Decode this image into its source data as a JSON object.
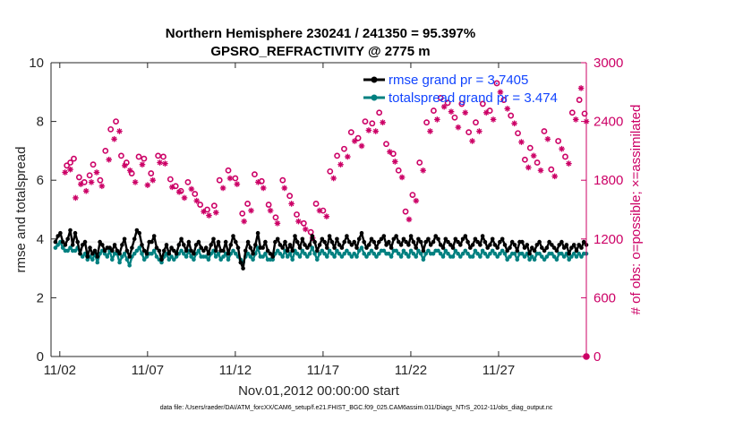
{
  "chart_data": {
    "type": "line",
    "title": "Northern Hemisphere 230241 / 241350 = 95.397%",
    "subtitle": "GPSRO_REFRACTIVITY @ 2775 m",
    "xlabel": "Nov.01,2012 00:00:00 start",
    "ylabel_left": "rmse and totalspread",
    "ylabel_right": "# of obs: o=possible; ×=assimilated",
    "footer": "data file: /Users/raeder/DAI/ATM_forcXX/CAM6_setup/f.e21.FHIST_BGC.f09_025.CAM6assim.011/Diags_NTrS_2012-11/obs_diag_output.nc",
    "x_range_days": [
      0.5,
      31.0
    ],
    "ylim_left": [
      0,
      10
    ],
    "ylim_right": [
      0,
      3000
    ],
    "x_tick_labels": [
      "11/02",
      "11/07",
      "11/12",
      "11/17",
      "11/22",
      "11/27"
    ],
    "x_tick_days": [
      1,
      6,
      11,
      16,
      21,
      26
    ],
    "y_left_ticks": [
      "0",
      "2",
      "4",
      "6",
      "8",
      "10"
    ],
    "y_right_ticks": [
      "0",
      "600",
      "1200",
      "1800",
      "2400",
      "3000"
    ],
    "colors": {
      "rmse": "#000000",
      "spread": "#008080",
      "obs": "#cc0066",
      "legend_text": "#1144ff"
    },
    "series": [
      {
        "name": "rmse grand pr = 3.7405",
        "values": [
          3.9,
          4.1,
          4.2,
          3.9,
          3.8,
          4.0,
          4.3,
          3.8,
          4.2,
          3.9,
          3.5,
          3.8,
          3.9,
          3.4,
          3.7,
          3.5,
          3.6,
          3.4,
          3.9,
          3.8,
          3.6,
          3.7,
          3.7,
          3.6,
          3.8,
          3.6,
          3.5,
          3.8,
          4.0,
          3.6,
          3.4,
          3.7,
          4.0,
          4.3,
          4.2,
          3.8,
          3.6,
          3.5,
          3.9,
          3.9,
          4.1,
          3.7,
          3.6,
          3.3,
          3.6,
          3.8,
          3.5,
          3.7,
          3.6,
          3.5,
          3.8,
          4.0,
          3.8,
          3.6,
          3.9,
          3.6,
          3.5,
          3.8,
          3.9,
          3.7,
          3.6,
          3.7,
          3.5,
          3.8,
          4.0,
          3.6,
          3.9,
          3.6,
          3.6,
          3.9,
          3.5,
          3.8,
          4.1,
          3.9,
          3.7,
          3.2,
          3.0,
          3.6,
          3.9,
          3.7,
          3.5,
          3.8,
          4.2,
          3.7,
          3.7,
          3.9,
          3.6,
          3.5,
          3.4,
          3.9,
          4.0,
          3.8,
          3.7,
          3.9,
          3.6,
          3.8,
          3.6,
          4.1,
          3.9,
          3.7,
          4.0,
          3.8,
          3.7,
          3.8,
          4.1,
          3.9,
          3.6,
          3.8,
          4.0,
          3.9,
          3.7,
          4.1,
          3.9,
          3.7,
          4.0,
          3.8,
          3.7,
          3.9,
          4.1,
          3.9,
          3.8,
          3.9,
          3.7,
          4.0,
          4.2,
          3.9,
          3.7,
          3.8,
          4.0,
          3.9,
          3.7,
          3.9,
          4.0,
          4.1,
          3.8,
          3.9,
          3.7,
          4.0,
          4.1,
          3.9,
          3.8,
          4.0,
          3.9,
          3.8,
          4.1,
          3.9,
          3.7,
          4.0,
          3.9,
          3.6,
          3.9,
          4.0,
          3.8,
          3.9,
          4.1,
          4.0,
          3.8,
          3.7,
          4.0,
          3.9,
          3.8,
          3.7,
          4.0,
          3.9,
          3.8,
          4.0,
          4.1,
          3.9,
          3.7,
          3.8,
          4.0,
          3.9,
          3.8,
          4.1,
          3.9,
          3.7,
          3.8,
          4.0,
          3.8,
          3.7,
          3.9,
          4.0,
          3.8,
          3.6,
          3.7,
          3.9,
          3.8,
          3.6,
          3.9,
          3.9,
          3.7,
          3.8,
          3.5,
          3.7,
          3.6,
          3.8,
          3.9,
          3.7,
          3.6,
          3.7,
          3.9,
          3.8,
          3.7,
          3.6,
          3.8,
          3.9,
          3.7,
          3.8,
          3.5,
          3.7,
          3.8,
          3.6,
          3.8,
          3.7,
          3.9,
          3.8
        ]
      },
      {
        "name": "totalspread grand pr = 3.474",
        "values": [
          3.7,
          3.8,
          3.9,
          3.7,
          3.6,
          3.6,
          3.7,
          3.6,
          3.6,
          3.7,
          3.5,
          3.4,
          3.5,
          3.3,
          3.4,
          3.3,
          3.5,
          3.2,
          3.5,
          3.6,
          3.5,
          3.4,
          3.6,
          3.3,
          3.5,
          3.5,
          3.2,
          3.4,
          3.5,
          3.3,
          3.1,
          3.4,
          3.5,
          3.6,
          3.7,
          3.5,
          3.3,
          3.4,
          3.5,
          3.5,
          3.6,
          3.4,
          3.3,
          3.2,
          3.4,
          3.5,
          3.3,
          3.4,
          3.3,
          3.4,
          3.5,
          3.6,
          3.5,
          3.4,
          3.6,
          3.4,
          3.3,
          3.5,
          3.6,
          3.4,
          3.4,
          3.4,
          3.3,
          3.5,
          3.6,
          3.4,
          3.5,
          3.3,
          3.4,
          3.5,
          3.3,
          3.5,
          3.6,
          3.5,
          3.4,
          3.3,
          3.2,
          3.4,
          3.5,
          3.4,
          3.3,
          3.5,
          3.7,
          3.4,
          3.4,
          3.5,
          3.3,
          3.3,
          3.3,
          3.5,
          3.6,
          3.5,
          3.4,
          3.6,
          3.4,
          3.5,
          3.3,
          3.6,
          3.5,
          3.4,
          3.6,
          3.5,
          3.4,
          3.5,
          3.7,
          3.5,
          3.3,
          3.5,
          3.6,
          3.5,
          3.4,
          3.6,
          3.5,
          3.4,
          3.6,
          3.5,
          3.4,
          3.5,
          3.6,
          3.5,
          3.4,
          3.5,
          3.4,
          3.6,
          3.7,
          3.5,
          3.4,
          3.5,
          3.6,
          3.5,
          3.4,
          3.5,
          3.6,
          3.6,
          3.5,
          3.5,
          3.4,
          3.6,
          3.6,
          3.5,
          3.4,
          3.6,
          3.5,
          3.4,
          3.6,
          3.5,
          3.4,
          3.6,
          3.5,
          3.3,
          3.5,
          3.6,
          3.5,
          3.5,
          3.6,
          3.6,
          3.5,
          3.4,
          3.6,
          3.5,
          3.4,
          3.4,
          3.6,
          3.5,
          3.4,
          3.5,
          3.6,
          3.5,
          3.4,
          3.4,
          3.6,
          3.5,
          3.4,
          3.6,
          3.5,
          3.4,
          3.5,
          3.6,
          3.5,
          3.4,
          3.5,
          3.6,
          3.5,
          3.3,
          3.4,
          3.5,
          3.5,
          3.3,
          3.5,
          3.5,
          3.4,
          3.5,
          3.3,
          3.4,
          3.3,
          3.5,
          3.5,
          3.4,
          3.3,
          3.4,
          3.5,
          3.5,
          3.4,
          3.3,
          3.5,
          3.5,
          3.4,
          3.5,
          3.3,
          3.4,
          3.5,
          3.4,
          3.5,
          3.4,
          3.5,
          3.5
        ]
      }
    ],
    "obs_possible": [
      [
        1.4,
        1950
      ],
      [
        1.6,
        1980
      ],
      [
        1.8,
        2020
      ],
      [
        2.1,
        1830
      ],
      [
        2.4,
        1780
      ],
      [
        2.7,
        1850
      ],
      [
        2.9,
        1960
      ],
      [
        3.3,
        1800
      ],
      [
        3.6,
        2100
      ],
      [
        3.9,
        2320
      ],
      [
        4.2,
        2400
      ],
      [
        4.5,
        2050
      ],
      [
        4.8,
        1980
      ],
      [
        5.1,
        1870
      ],
      [
        5.5,
        2040
      ],
      [
        5.8,
        2020
      ],
      [
        6.2,
        1870
      ],
      [
        6.6,
        2050
      ],
      [
        6.9,
        2040
      ],
      [
        7.3,
        1810
      ],
      [
        7.6,
        1740
      ],
      [
        7.9,
        1690
      ],
      [
        8.3,
        1780
      ],
      [
        8.7,
        1660
      ],
      [
        9.0,
        1550
      ],
      [
        9.4,
        1500
      ],
      [
        9.8,
        1540
      ],
      [
        10.1,
        1800
      ],
      [
        10.6,
        1900
      ],
      [
        11.0,
        1820
      ],
      [
        11.4,
        1460
      ],
      [
        11.7,
        1560
      ],
      [
        12.1,
        1860
      ],
      [
        12.5,
        1790
      ],
      [
        12.9,
        1550
      ],
      [
        13.3,
        1420
      ],
      [
        13.7,
        1800
      ],
      [
        14.1,
        1640
      ],
      [
        14.5,
        1450
      ],
      [
        14.9,
        1360
      ],
      [
        15.3,
        1270
      ],
      [
        15.6,
        1560
      ],
      [
        16.0,
        1490
      ],
      [
        16.4,
        1890
      ],
      [
        16.8,
        2050
      ],
      [
        17.2,
        2120
      ],
      [
        17.6,
        2290
      ],
      [
        18.0,
        2230
      ],
      [
        18.4,
        2400
      ],
      [
        18.8,
        2380
      ],
      [
        19.2,
        2490
      ],
      [
        19.6,
        2170
      ],
      [
        20.0,
        2070
      ],
      [
        20.3,
        1900
      ],
      [
        20.7,
        1480
      ],
      [
        21.1,
        1650
      ],
      [
        21.5,
        1980
      ],
      [
        21.9,
        2390
      ],
      [
        22.3,
        2510
      ],
      [
        22.7,
        2640
      ],
      [
        23.1,
        2590
      ],
      [
        23.5,
        2440
      ],
      [
        23.9,
        2580
      ],
      [
        24.3,
        2290
      ],
      [
        24.7,
        2390
      ],
      [
        25.1,
        2580
      ],
      [
        25.5,
        2510
      ],
      [
        25.9,
        2790
      ],
      [
        26.3,
        2620
      ],
      [
        26.7,
        2460
      ],
      [
        27.1,
        2280
      ],
      [
        27.5,
        2010
      ],
      [
        27.8,
        2130
      ],
      [
        28.2,
        1980
      ],
      [
        28.6,
        2300
      ],
      [
        29.0,
        1910
      ],
      [
        29.4,
        2200
      ],
      [
        29.8,
        2040
      ],
      [
        30.2,
        2490
      ],
      [
        30.6,
        2620
      ],
      [
        30.9,
        2480
      ]
    ],
    "obs_assimilated": [
      [
        1.3,
        1880
      ],
      [
        1.6,
        1910
      ],
      [
        1.9,
        1620
      ],
      [
        2.2,
        1760
      ],
      [
        2.5,
        1690
      ],
      [
        2.8,
        1780
      ],
      [
        3.1,
        1880
      ],
      [
        3.4,
        1740
      ],
      [
        3.8,
        2010
      ],
      [
        4.1,
        2220
      ],
      [
        4.4,
        2300
      ],
      [
        4.7,
        1950
      ],
      [
        5.0,
        1900
      ],
      [
        5.3,
        1780
      ],
      [
        5.7,
        1960
      ],
      [
        6.0,
        1750
      ],
      [
        6.3,
        1800
      ],
      [
        6.7,
        1980
      ],
      [
        7.0,
        1970
      ],
      [
        7.4,
        1730
      ],
      [
        7.8,
        1680
      ],
      [
        8.1,
        1620
      ],
      [
        8.5,
        1710
      ],
      [
        8.8,
        1590
      ],
      [
        9.2,
        1480
      ],
      [
        9.5,
        1440
      ],
      [
        9.9,
        1470
      ],
      [
        10.3,
        1720
      ],
      [
        10.7,
        1820
      ],
      [
        11.1,
        1760
      ],
      [
        11.5,
        1380
      ],
      [
        11.9,
        1490
      ],
      [
        12.3,
        1780
      ],
      [
        12.6,
        1720
      ],
      [
        13.0,
        1490
      ],
      [
        13.4,
        1360
      ],
      [
        13.8,
        1720
      ],
      [
        14.2,
        1560
      ],
      [
        14.6,
        1380
      ],
      [
        15.0,
        1300
      ],
      [
        15.4,
        1210
      ],
      [
        15.8,
        1490
      ],
      [
        16.2,
        1430
      ],
      [
        16.6,
        1820
      ],
      [
        17.0,
        1960
      ],
      [
        17.4,
        2040
      ],
      [
        17.8,
        2200
      ],
      [
        18.2,
        2150
      ],
      [
        18.6,
        2310
      ],
      [
        19.0,
        2300
      ],
      [
        19.4,
        2390
      ],
      [
        19.8,
        2090
      ],
      [
        20.1,
        1990
      ],
      [
        20.5,
        1830
      ],
      [
        20.9,
        1400
      ],
      [
        21.3,
        1590
      ],
      [
        21.7,
        1900
      ],
      [
        22.1,
        2300
      ],
      [
        22.5,
        2420
      ],
      [
        22.9,
        2550
      ],
      [
        23.3,
        2500
      ],
      [
        23.7,
        2340
      ],
      [
        24.1,
        2490
      ],
      [
        24.5,
        2200
      ],
      [
        24.9,
        2300
      ],
      [
        25.3,
        2490
      ],
      [
        25.7,
        2420
      ],
      [
        26.1,
        2700
      ],
      [
        26.5,
        2530
      ],
      [
        26.9,
        2380
      ],
      [
        27.3,
        2190
      ],
      [
        27.7,
        1930
      ],
      [
        28.0,
        2050
      ],
      [
        28.4,
        1900
      ],
      [
        28.8,
        2220
      ],
      [
        29.2,
        1840
      ],
      [
        29.6,
        2120
      ],
      [
        30.0,
        1970
      ],
      [
        30.4,
        2420
      ],
      [
        30.7,
        2740
      ],
      [
        31.0,
        2400
      ]
    ]
  }
}
